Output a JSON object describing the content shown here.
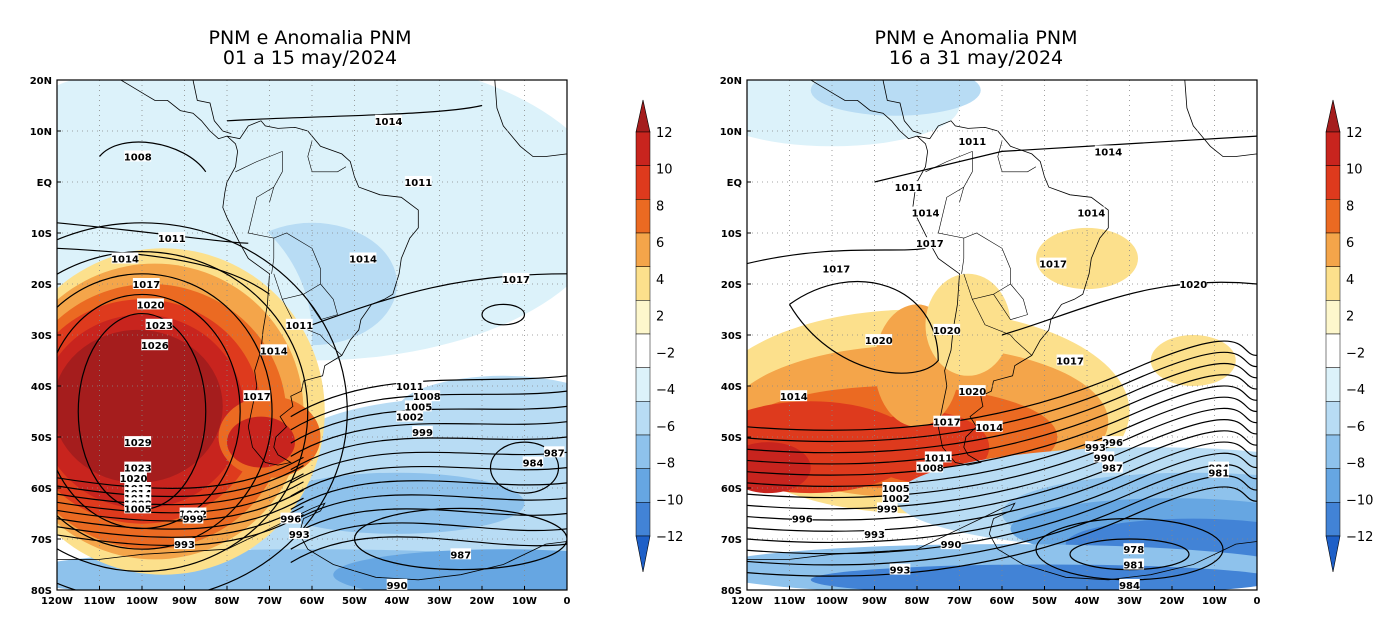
{
  "panels": [
    {
      "title_line1": "PNM e Anomalia PNM",
      "title_line2": "01 a 15 may/2024",
      "lat_ticks": [
        "20N",
        "10N",
        "EQ",
        "10S",
        "20S",
        "30S",
        "40S",
        "50S",
        "60S",
        "70S",
        "80S"
      ],
      "lon_ticks": [
        "120W",
        "110W",
        "100W",
        "90W",
        "80W",
        "70W",
        "60W",
        "50W",
        "40W",
        "30W",
        "20W",
        "10W",
        "0"
      ],
      "isobar_labels": [
        {
          "text": "1014",
          "lon": -42,
          "lat": 12
        },
        {
          "text": "1008",
          "lon": -101,
          "lat": 5
        },
        {
          "text": "1011",
          "lon": -35,
          "lat": 0
        },
        {
          "text": "1011",
          "lon": -93,
          "lat": -11
        },
        {
          "text": "1014",
          "lon": -48,
          "lat": -15
        },
        {
          "text": "1014",
          "lon": -104,
          "lat": -15
        },
        {
          "text": "1017",
          "lon": -99,
          "lat": -20
        },
        {
          "text": "1017",
          "lon": -12,
          "lat": -19
        },
        {
          "text": "1020",
          "lon": -98,
          "lat": -24
        },
        {
          "text": "1023",
          "lon": -96,
          "lat": -28
        },
        {
          "text": "1026",
          "lon": -97,
          "lat": -32
        },
        {
          "text": "1011",
          "lon": -63,
          "lat": -28
        },
        {
          "text": "1014",
          "lon": -69,
          "lat": -33
        },
        {
          "text": "1017",
          "lon": -73,
          "lat": -42
        },
        {
          "text": "1011",
          "lon": -37,
          "lat": -40
        },
        {
          "text": "1008",
          "lon": -33,
          "lat": -42
        },
        {
          "text": "1005",
          "lon": -35,
          "lat": -44
        },
        {
          "text": "1002",
          "lon": -37,
          "lat": -46
        },
        {
          "text": "999",
          "lon": -34,
          "lat": -49
        },
        {
          "text": "1029",
          "lon": -101,
          "lat": -51
        },
        {
          "text": "1023",
          "lon": -101,
          "lat": -56
        },
        {
          "text": "1020",
          "lon": -102,
          "lat": -58
        },
        {
          "text": "1017",
          "lon": -101,
          "lat": -60
        },
        {
          "text": "1014",
          "lon": -101,
          "lat": -61
        },
        {
          "text": "1011",
          "lon": -101,
          "lat": -62
        },
        {
          "text": "1008",
          "lon": -101,
          "lat": -63
        },
        {
          "text": "1005",
          "lon": -101,
          "lat": -64
        },
        {
          "text": "1002",
          "lon": -88,
          "lat": -65
        },
        {
          "text": "999",
          "lon": -88,
          "lat": -66
        },
        {
          "text": "996",
          "lon": -65,
          "lat": -66
        },
        {
          "text": "993",
          "lon": -63,
          "lat": -69
        },
        {
          "text": "993",
          "lon": -90,
          "lat": -71
        },
        {
          "text": "987",
          "lon": -25,
          "lat": -73
        },
        {
          "text": "984",
          "lon": -8,
          "lat": -55
        },
        {
          "text": "987",
          "lon": -3,
          "lat": -53
        },
        {
          "text": "990",
          "lon": -40,
          "lat": -79
        }
      ]
    },
    {
      "title_line1": "PNM e Anomalia PNM",
      "title_line2": "16 a 31 may/2024",
      "lat_ticks": [
        "20N",
        "10N",
        "EQ",
        "10S",
        "20S",
        "30S",
        "40S",
        "50S",
        "60S",
        "70S",
        "80S"
      ],
      "lon_ticks": [
        "120W",
        "110W",
        "100W",
        "90W",
        "80W",
        "70W",
        "60W",
        "50W",
        "40W",
        "30W",
        "20W",
        "10W",
        "0"
      ],
      "isobar_labels": [
        {
          "text": "1011",
          "lon": -67,
          "lat": 8
        },
        {
          "text": "1014",
          "lon": -35,
          "lat": 6
        },
        {
          "text": "1011",
          "lon": -82,
          "lat": -1
        },
        {
          "text": "1014",
          "lon": -78,
          "lat": -6
        },
        {
          "text": "1014",
          "lon": -39,
          "lat": -6
        },
        {
          "text": "1017",
          "lon": -77,
          "lat": -12
        },
        {
          "text": "1017",
          "lon": -48,
          "lat": -16
        },
        {
          "text": "1017",
          "lon": -99,
          "lat": -17
        },
        {
          "text": "1020",
          "lon": -15,
          "lat": -20
        },
        {
          "text": "1020",
          "lon": -73,
          "lat": -29
        },
        {
          "text": "1020",
          "lon": -89,
          "lat": -31
        },
        {
          "text": "1017",
          "lon": -44,
          "lat": -35
        },
        {
          "text": "1020",
          "lon": -67,
          "lat": -41
        },
        {
          "text": "1014",
          "lon": -109,
          "lat": -42
        },
        {
          "text": "1017",
          "lon": -73,
          "lat": -47
        },
        {
          "text": "1014",
          "lon": -63,
          "lat": -48
        },
        {
          "text": "996",
          "lon": -34,
          "lat": -51
        },
        {
          "text": "993",
          "lon": -38,
          "lat": -52
        },
        {
          "text": "990",
          "lon": -36,
          "lat": -54
        },
        {
          "text": "987",
          "lon": -34,
          "lat": -56
        },
        {
          "text": "1011",
          "lon": -75,
          "lat": -54
        },
        {
          "text": "1008",
          "lon": -77,
          "lat": -56
        },
        {
          "text": "984",
          "lon": -9,
          "lat": -56
        },
        {
          "text": "981",
          "lon": -9,
          "lat": -57
        },
        {
          "text": "1005",
          "lon": -85,
          "lat": -60
        },
        {
          "text": "1002",
          "lon": -85,
          "lat": -62
        },
        {
          "text": "999",
          "lon": -87,
          "lat": -64
        },
        {
          "text": "996",
          "lon": -107,
          "lat": -66
        },
        {
          "text": "993",
          "lon": -90,
          "lat": -69
        },
        {
          "text": "990",
          "lon": -72,
          "lat": -71
        },
        {
          "text": "978",
          "lon": -29,
          "lat": -72
        },
        {
          "text": "981",
          "lon": -29,
          "lat": -75
        },
        {
          "text": "993",
          "lon": -84,
          "lat": -76
        },
        {
          "text": "984",
          "lon": -30,
          "lat": -79
        }
      ]
    }
  ],
  "colorbar": {
    "levels": [
      "12",
      "10",
      "8",
      "6",
      "4",
      "2",
      "−2",
      "−4",
      "−6",
      "−8",
      "−10",
      "−12"
    ],
    "colors": [
      "#a51d1d",
      "#c8241e",
      "#de3a1d",
      "#eb6a22",
      "#f4a54a",
      "#fce08c",
      "#fdf7cc",
      "#ffffff",
      "#dcf2fa",
      "#b8dcf4",
      "#8ec2ec",
      "#66a6e2",
      "#4283d6",
      "#1e60c8"
    ]
  }
}
